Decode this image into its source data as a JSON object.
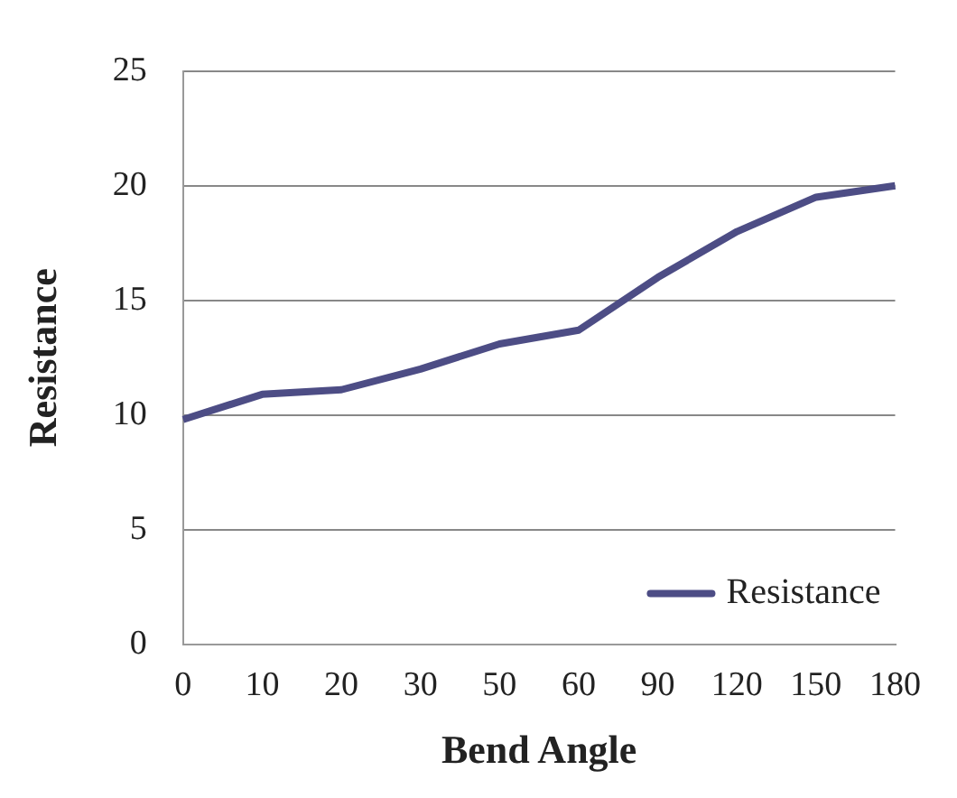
{
  "chart_data": {
    "type": "line",
    "xlabel": "Bend Angle",
    "ylabel": "Resistance",
    "categories": [
      "0",
      "10",
      "20",
      "30",
      "50",
      "60",
      "90",
      "120",
      "150",
      "180"
    ],
    "series": [
      {
        "name": "Resistance",
        "color": "#4d4d85",
        "values": [
          9.8,
          10.9,
          11.1,
          12,
          13.1,
          13.7,
          16,
          18,
          19.5,
          20
        ]
      }
    ],
    "ylim": [
      0,
      25
    ],
    "yticks": [
      0,
      5,
      10,
      15,
      20,
      25
    ],
    "grid": "y",
    "legend": "bottom right",
    "marker": "none",
    "line_style": "solid"
  }
}
